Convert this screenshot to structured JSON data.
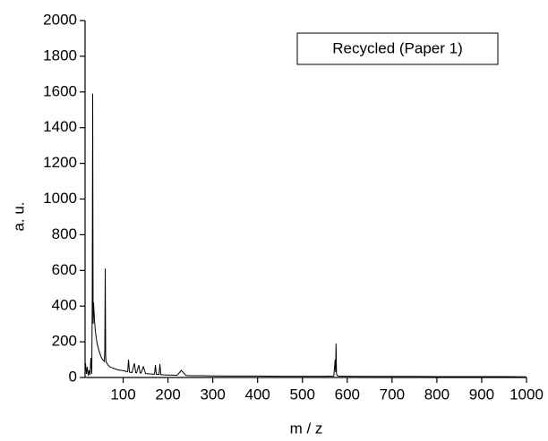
{
  "chart_data": {
    "type": "line",
    "xlabel": "m / z",
    "ylabel": "a. u.",
    "x": [
      16,
      18,
      20,
      22,
      24,
      26,
      28,
      30,
      31,
      32,
      33,
      34,
      36,
      38,
      40,
      42,
      44,
      46,
      48,
      50,
      52,
      54,
      56,
      58,
      59,
      60,
      61,
      62,
      64,
      66,
      68,
      70,
      75,
      80,
      85,
      90,
      95,
      100,
      105,
      110,
      112,
      114,
      120,
      125,
      128,
      130,
      135,
      138,
      140,
      145,
      150,
      160,
      170,
      172,
      174,
      180,
      182,
      184,
      190,
      200,
      210,
      220,
      230,
      240,
      250,
      275,
      300,
      350,
      400,
      450,
      500,
      550,
      570,
      573,
      574,
      575,
      576,
      578,
      580,
      600,
      650,
      700,
      750,
      800,
      850,
      900,
      950,
      1000
    ],
    "series": [
      {
        "name": "Recycled (Paper 1)",
        "color": "#000000",
        "values": [
          80,
          20,
          60,
          10,
          40,
          15,
          110,
          20,
          440,
          1590,
          300,
          420,
          320,
          260,
          220,
          190,
          170,
          150,
          135,
          120,
          110,
          100,
          95,
          90,
          150,
          610,
          120,
          85,
          80,
          70,
          65,
          60,
          55,
          50,
          45,
          42,
          40,
          38,
          35,
          32,
          100,
          30,
          28,
          80,
          27,
          26,
          70,
          25,
          24,
          60,
          22,
          20,
          19,
          70,
          18,
          17,
          75,
          16,
          15,
          14,
          13,
          12,
          40,
          11,
          10,
          10,
          9,
          8,
          8,
          7,
          7,
          7,
          8,
          100,
          30,
          190,
          20,
          10,
          8,
          7,
          6,
          6,
          6,
          5,
          5,
          5,
          5,
          4
        ]
      }
    ],
    "xlim": [
      15,
      1000
    ],
    "xticks": [
      100,
      200,
      300,
      400,
      500,
      600,
      700,
      800,
      900,
      1000
    ],
    "ylim": [
      0,
      2000
    ],
    "yticks": [
      0,
      200,
      400,
      600,
      800,
      1000,
      1200,
      1400,
      1600,
      1800,
      2000
    ],
    "legend": "upper right"
  }
}
